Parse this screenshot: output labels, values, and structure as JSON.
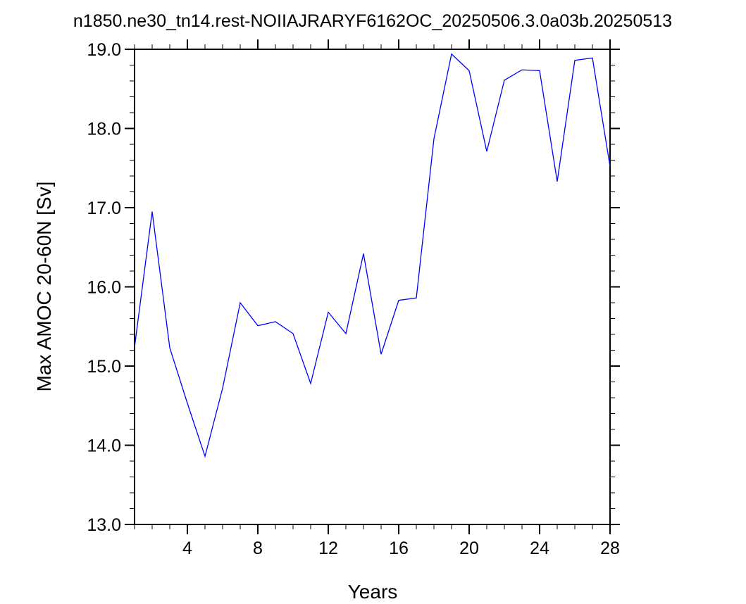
{
  "chart_data": {
    "type": "line",
    "title": "n1850.ne30_tn14.rest-NOIIAJRARYF6162OC_20250506.3.0a03b.20250513",
    "xlabel": "Years",
    "ylabel": "Max AMOC 20-60N [Sv]",
    "xlim": [
      1,
      28
    ],
    "ylim": [
      13.0,
      19.0
    ],
    "x_ticks": [
      4,
      8,
      12,
      16,
      20,
      24,
      28
    ],
    "x_tick_labels": [
      "4",
      "8",
      "12",
      "16",
      "20",
      "24",
      "28"
    ],
    "y_ticks": [
      13.0,
      14.0,
      15.0,
      16.0,
      17.0,
      18.0,
      19.0
    ],
    "y_tick_labels": [
      "13.0",
      "14.0",
      "15.0",
      "16.0",
      "17.0",
      "18.0",
      "19.0"
    ],
    "grid": false,
    "line_color": "#0000ff",
    "series": [
      {
        "x": [
          1,
          2,
          3,
          4,
          5,
          6,
          7,
          8,
          9,
          10,
          11,
          12,
          13,
          14,
          15,
          16,
          17,
          18,
          19,
          20,
          21,
          22,
          23,
          24,
          25,
          26,
          27,
          28
        ],
        "values": [
          15.24,
          16.95,
          15.23,
          14.53,
          13.86,
          14.72,
          15.8,
          15.51,
          15.56,
          15.41,
          14.78,
          15.68,
          15.41,
          16.42,
          15.15,
          15.83,
          15.86,
          17.87,
          18.94,
          18.73,
          17.71,
          18.61,
          18.74,
          18.73,
          17.33,
          18.86,
          18.89,
          17.52
        ]
      }
    ]
  }
}
